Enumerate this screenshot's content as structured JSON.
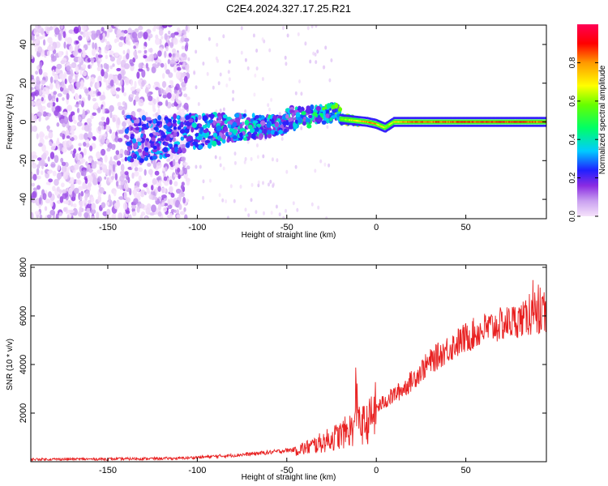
{
  "title": "C2E4.2024.327.17.25.R21",
  "chart_data": [
    {
      "type": "heatmap",
      "xlabel": "Height of straight line (km)",
      "ylabel": "Frequency (Hz)",
      "xlim": [
        -193,
        95
      ],
      "ylim": [
        -50,
        50
      ],
      "xticks": [
        -150,
        -100,
        -50,
        0,
        50
      ],
      "xtick_labels": [
        "-150",
        "-100",
        "-50",
        "0",
        "50"
      ],
      "yticks": [
        -40,
        -20,
        0,
        20,
        40
      ],
      "ytick_labels": [
        "-40",
        "-20",
        "0",
        "20",
        "40"
      ],
      "colorbar": {
        "label": "Normalized spectral amplitude",
        "range": [
          0,
          1
        ],
        "ticks": [
          0,
          0.2,
          0.4,
          0.6,
          0.8
        ],
        "tick_labels": [
          "0.0",
          "0.2",
          "0.4",
          "0.6",
          "0.8"
        ],
        "colormap": [
          "#f6e3fb",
          "#c9a0f0",
          "#8a2be2",
          "#2020ff",
          "#00ccff",
          "#00ff66",
          "#66ff00",
          "#ffff00",
          "#ff9900",
          "#ff0000",
          "#ff0055"
        ]
      },
      "carrier_track": {
        "x": [
          -135,
          -120,
          -100,
          -80,
          -60,
          -40,
          -25,
          -15,
          -5,
          0,
          5,
          10,
          20,
          40,
          60,
          80,
          95
        ],
        "frequency": [
          -9,
          -8,
          -5,
          -3,
          -2,
          0,
          2,
          1,
          0,
          -1,
          -3,
          0,
          0,
          0,
          0,
          0,
          0
        ],
        "amplitude": [
          0.35,
          0.38,
          0.42,
          0.45,
          0.45,
          0.48,
          0.55,
          0.7,
          0.85,
          0.88,
          0.7,
          0.75,
          0.9,
          0.92,
          0.95,
          0.95,
          0.9
        ]
      },
      "noise_region_x": [
        -193,
        -105
      ]
    },
    {
      "type": "line",
      "xlabel": "Height of straight line (km)",
      "ylabel": "SNR (10 * v/v)",
      "xlim": [
        -193,
        95
      ],
      "ylim": [
        0,
        8100
      ],
      "xticks": [
        -150,
        -100,
        -50,
        0,
        50
      ],
      "xtick_labels": [
        "-150",
        "-100",
        "-50",
        "0",
        "50"
      ],
      "yticks": [
        2000,
        4000,
        6000,
        8000
      ],
      "ytick_labels": [
        "2000",
        "4000",
        "6000",
        "8000"
      ],
      "color": "#e82020",
      "series": [
        {
          "x": [
            -193,
            -150,
            -110,
            -100,
            -80,
            -60,
            -40,
            -30,
            -20,
            -15,
            -10,
            -5,
            0,
            5,
            10,
            15,
            20,
            25,
            30,
            40,
            50,
            60,
            70,
            80,
            90,
            95
          ],
          "values": [
            100,
            110,
            140,
            180,
            260,
            380,
            550,
            800,
            1100,
            1300,
            1500,
            1550,
            2200,
            2500,
            2750,
            3000,
            3350,
            3750,
            4100,
            4650,
            5100,
            5450,
            5650,
            5850,
            6000,
            6100
          ]
        }
      ]
    }
  ]
}
